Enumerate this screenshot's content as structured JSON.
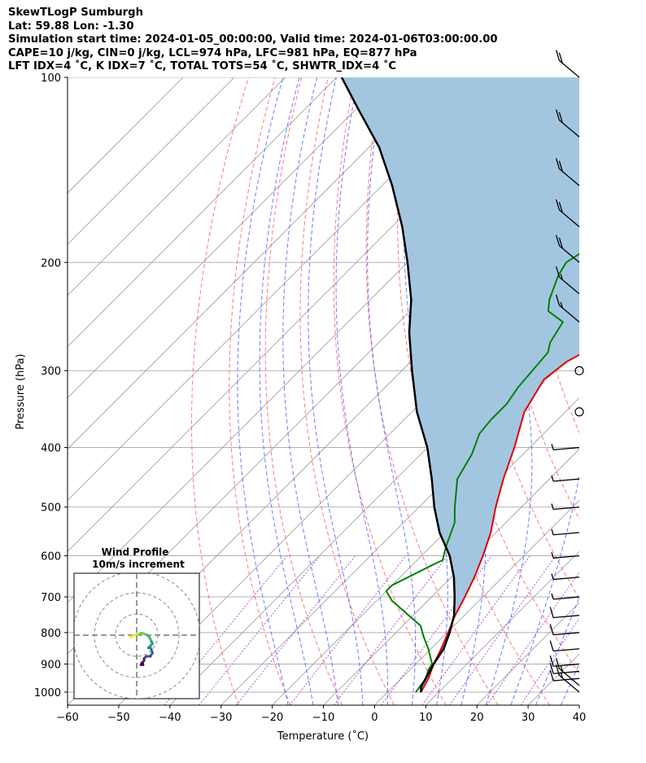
{
  "header": {
    "line1": "SkewTLogP Sumburgh",
    "line2": "Lat: 59.88   Lon: -1.30",
    "line3": "Simulation start time: 2024-01-05_00:00:00, Valid time: 2024-01-06T03:00:00.00",
    "line4": "CAPE=10 j/kg, CIN=0 j/kg, LCL=974 hPa, LFC=981 hPa, EQ=877 hPa",
    "line5": "LFT IDX=4 ˚C, K IDX=7 ˚C, TOTAL TOTS=54 ˚C, SHWTR_IDX=4 ˚C"
  },
  "chart_data": {
    "type": "line",
    "subtype": "skew-t log-p",
    "xlabel": "Temperature (˚C)",
    "ylabel": "Pressure (hPa)",
    "xlim": [
      -60,
      40
    ],
    "ylim": [
      1050,
      100
    ],
    "y_scale": "log",
    "grid": true,
    "x_ticks": [
      -60,
      -50,
      -40,
      -30,
      -20,
      -10,
      0,
      10,
      20,
      30,
      40
    ],
    "y_ticks": [
      100,
      200,
      300,
      400,
      500,
      600,
      700,
      800,
      900,
      1000
    ],
    "colors": {
      "temperature": "#e00000",
      "dewpoint": "#008000",
      "parcel": "#000000",
      "cape_fill": "#a3c6e0",
      "dry_adiabat": "#ff5a5a",
      "moist_adiabat": "#4a5aff",
      "isotherm": "#9a9a9a",
      "mixing_ratio": "#9b30d0"
    },
    "series": [
      {
        "key": "temperature",
        "points": [
          [
            6.5,
            1000
          ],
          [
            5.3,
            950
          ],
          [
            3.5,
            900
          ],
          [
            2,
            850
          ],
          [
            0.2,
            800
          ],
          [
            -1.8,
            750
          ],
          [
            -3.5,
            700
          ],
          [
            -5.5,
            650
          ],
          [
            -8,
            600
          ],
          [
            -11,
            550
          ],
          [
            -15,
            500
          ],
          [
            -19,
            450
          ],
          [
            -23,
            400
          ],
          [
            -28,
            350
          ],
          [
            -30.5,
            310
          ],
          [
            -30,
            300
          ],
          [
            -29.5,
            290
          ],
          [
            -28,
            280
          ],
          [
            -26.5,
            270
          ],
          [
            -24.7,
            260
          ],
          [
            -23,
            250
          ],
          [
            -20,
            230
          ],
          [
            -17.5,
            210
          ],
          [
            -15.5,
            200
          ],
          [
            -14,
            190
          ],
          [
            -12.5,
            180
          ],
          [
            -11,
            170
          ],
          [
            -9,
            160
          ],
          [
            -6,
            150
          ],
          [
            -2,
            140
          ],
          [
            2,
            130
          ],
          [
            6,
            120
          ],
          [
            10,
            110
          ],
          [
            14,
            100
          ]
        ]
      },
      {
        "key": "dewpoint",
        "points": [
          [
            5.5,
            1000
          ],
          [
            4.8,
            950
          ],
          [
            3.6,
            920
          ],
          [
            3.2,
            900
          ],
          [
            -0.5,
            850
          ],
          [
            -4,
            810
          ],
          [
            -6.5,
            780
          ],
          [
            -17,
            710
          ],
          [
            -20,
            685
          ],
          [
            -20,
            670
          ],
          [
            -16,
            620
          ],
          [
            -15,
            610
          ],
          [
            -17,
            580
          ],
          [
            -20,
            530
          ],
          [
            -23,
            500
          ],
          [
            -28,
            450
          ],
          [
            -30,
            410
          ],
          [
            -32.5,
            380
          ],
          [
            -33,
            360
          ],
          [
            -33,
            340
          ],
          [
            -34,
            320
          ],
          [
            -35,
            280
          ],
          [
            -36.5,
            270
          ],
          [
            -38,
            250
          ],
          [
            -43,
            240
          ],
          [
            -45,
            230
          ],
          [
            -48,
            210
          ],
          [
            -49,
            200
          ],
          [
            -46,
            180
          ],
          [
            -45,
            170
          ],
          [
            -40,
            160
          ],
          [
            -35,
            150
          ],
          [
            -25,
            130
          ],
          [
            -11,
            100
          ]
        ]
      },
      {
        "key": "parcel",
        "points": [
          [
            6.5,
            1000
          ],
          [
            5.5,
            980
          ],
          [
            3.5,
            900
          ],
          [
            2.5,
            850
          ],
          [
            0.5,
            800
          ],
          [
            -2,
            750
          ],
          [
            -5.5,
            700
          ],
          [
            -9.5,
            650
          ],
          [
            -14.5,
            600
          ],
          [
            -21,
            550
          ],
          [
            -27,
            500
          ],
          [
            -33,
            450
          ],
          [
            -40,
            400
          ],
          [
            -49,
            350
          ],
          [
            -58,
            300
          ],
          [
            -66,
            260
          ],
          [
            -72,
            230
          ],
          [
            -80,
            200
          ],
          [
            -88,
            175
          ],
          [
            -98,
            150
          ],
          [
            -108,
            130
          ],
          [
            -120,
            112
          ],
          [
            -129,
            100
          ]
        ]
      }
    ],
    "wind_barbs_kt": [
      {
        "p": 100,
        "speed": 20
      },
      {
        "p": 125,
        "speed": 20
      },
      {
        "p": 150,
        "speed": 20
      },
      {
        "p": 175,
        "speed": 20
      },
      {
        "p": 200,
        "speed": 20
      },
      {
        "p": 225,
        "speed": 15
      },
      {
        "p": 250,
        "speed": 15
      },
      {
        "p": 300,
        "speed": 0
      },
      {
        "p": 350,
        "speed": 0
      },
      {
        "p": 400,
        "speed": 5
      },
      {
        "p": 450,
        "speed": 5
      },
      {
        "p": 500,
        "speed": 5
      },
      {
        "p": 550,
        "speed": 5
      },
      {
        "p": 600,
        "speed": 5
      },
      {
        "p": 650,
        "speed": 5
      },
      {
        "p": 700,
        "speed": 5
      },
      {
        "p": 750,
        "speed": 10
      },
      {
        "p": 800,
        "speed": 10
      },
      {
        "p": 850,
        "speed": 10
      },
      {
        "p": 900,
        "speed": 10
      },
      {
        "p": 925,
        "speed": 10
      },
      {
        "p": 950,
        "speed": 10
      },
      {
        "p": 975,
        "speed": 15
      },
      {
        "p": 1000,
        "speed": 15
      }
    ],
    "inset": {
      "title": "Wind Profile",
      "subtitle": "10m/s increment",
      "ring_step_ms": 10,
      "hodograph": [
        [
          -1,
          -3
        ],
        [
          -0.5,
          -2
        ],
        [
          0,
          -1
        ],
        [
          0.3,
          0
        ],
        [
          0.5,
          1
        ],
        [
          0.8,
          1.5
        ],
        [
          1,
          2.5
        ],
        [
          0.5,
          4
        ],
        [
          0,
          5
        ],
        [
          -1,
          6
        ],
        [
          -3,
          7
        ],
        [
          -4,
          7.5
        ],
        [
          -5,
          6.5
        ],
        [
          -6,
          5.5
        ],
        [
          -6,
          6.5
        ],
        [
          -7,
          7
        ],
        [
          -8.5,
          7.5
        ],
        [
          -9,
          7
        ],
        [
          -10,
          6.5
        ],
        [
          -10,
          4.5
        ],
        [
          -11,
          3.5
        ],
        [
          -12,
          3.5
        ],
        [
          -13,
          2.8
        ],
        [
          -14,
          3
        ],
        [
          -13,
          2.5
        ],
        [
          -14,
          2
        ]
      ]
    }
  }
}
